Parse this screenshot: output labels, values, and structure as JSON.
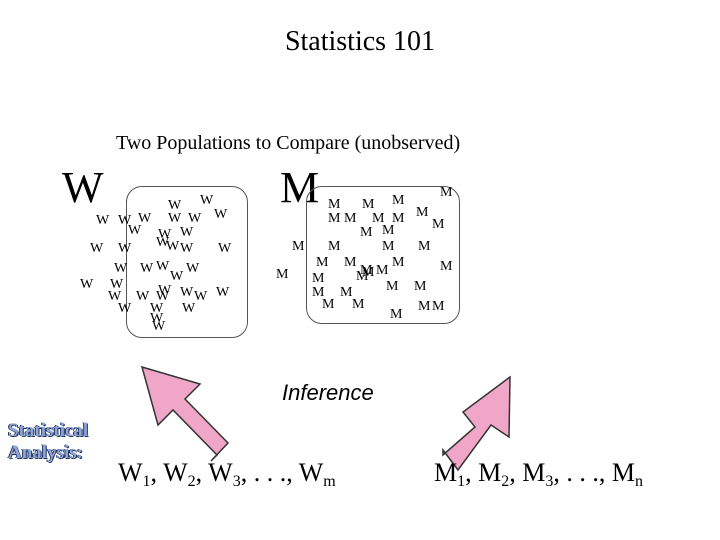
{
  "title": "Statistics 101",
  "subtitle": "Two Populations to Compare (unobserved)",
  "populations": {
    "w": {
      "label": "W",
      "tokens": [
        "W",
        "W",
        "W",
        "W",
        "W",
        "W",
        "W",
        "W",
        "W",
        "W",
        "W",
        "W",
        "W",
        "W",
        "W",
        "W",
        "W",
        "W",
        "W",
        "W",
        "W",
        "W",
        "W",
        "W",
        "W",
        "W",
        "W",
        "W",
        "W",
        "W",
        "W",
        "W",
        "W",
        "W",
        "W",
        "W"
      ]
    },
    "m": {
      "label": "M",
      "tokens": [
        "M",
        "M",
        "M",
        "M",
        "M",
        "M",
        "M",
        "M",
        "M",
        "M",
        "M",
        "M",
        "M",
        "M",
        "M",
        "M",
        "M",
        "M",
        "M",
        "M",
        "M",
        "M",
        "M",
        "M",
        "M",
        "M",
        "M",
        "M",
        "M",
        "M",
        "M",
        "M",
        "M",
        "M",
        "M"
      ]
    }
  },
  "inference_label": "Inference",
  "analysis_label": "Statistical Analysis:",
  "samples": {
    "w": {
      "items": [
        {
          "base": "W",
          "sub": "1"
        },
        {
          "base": "W",
          "sub": "2"
        },
        {
          "base": "W",
          "sub": "3"
        }
      ],
      "ellipsis": ". . .",
      "last": {
        "base": "W",
        "sub": "m"
      }
    },
    "m": {
      "items": [
        {
          "base": "M",
          "sub": "1"
        },
        {
          "base": "M",
          "sub": "2"
        },
        {
          "base": "M",
          "sub": "3"
        }
      ],
      "ellipsis": ". . .",
      "last": {
        "base": "M",
        "sub": "n"
      }
    }
  },
  "colors": {
    "arrow_fill": "#f0a6c6",
    "arrow_stroke": "#333333",
    "analysis_text": "#8fa6d8"
  }
}
